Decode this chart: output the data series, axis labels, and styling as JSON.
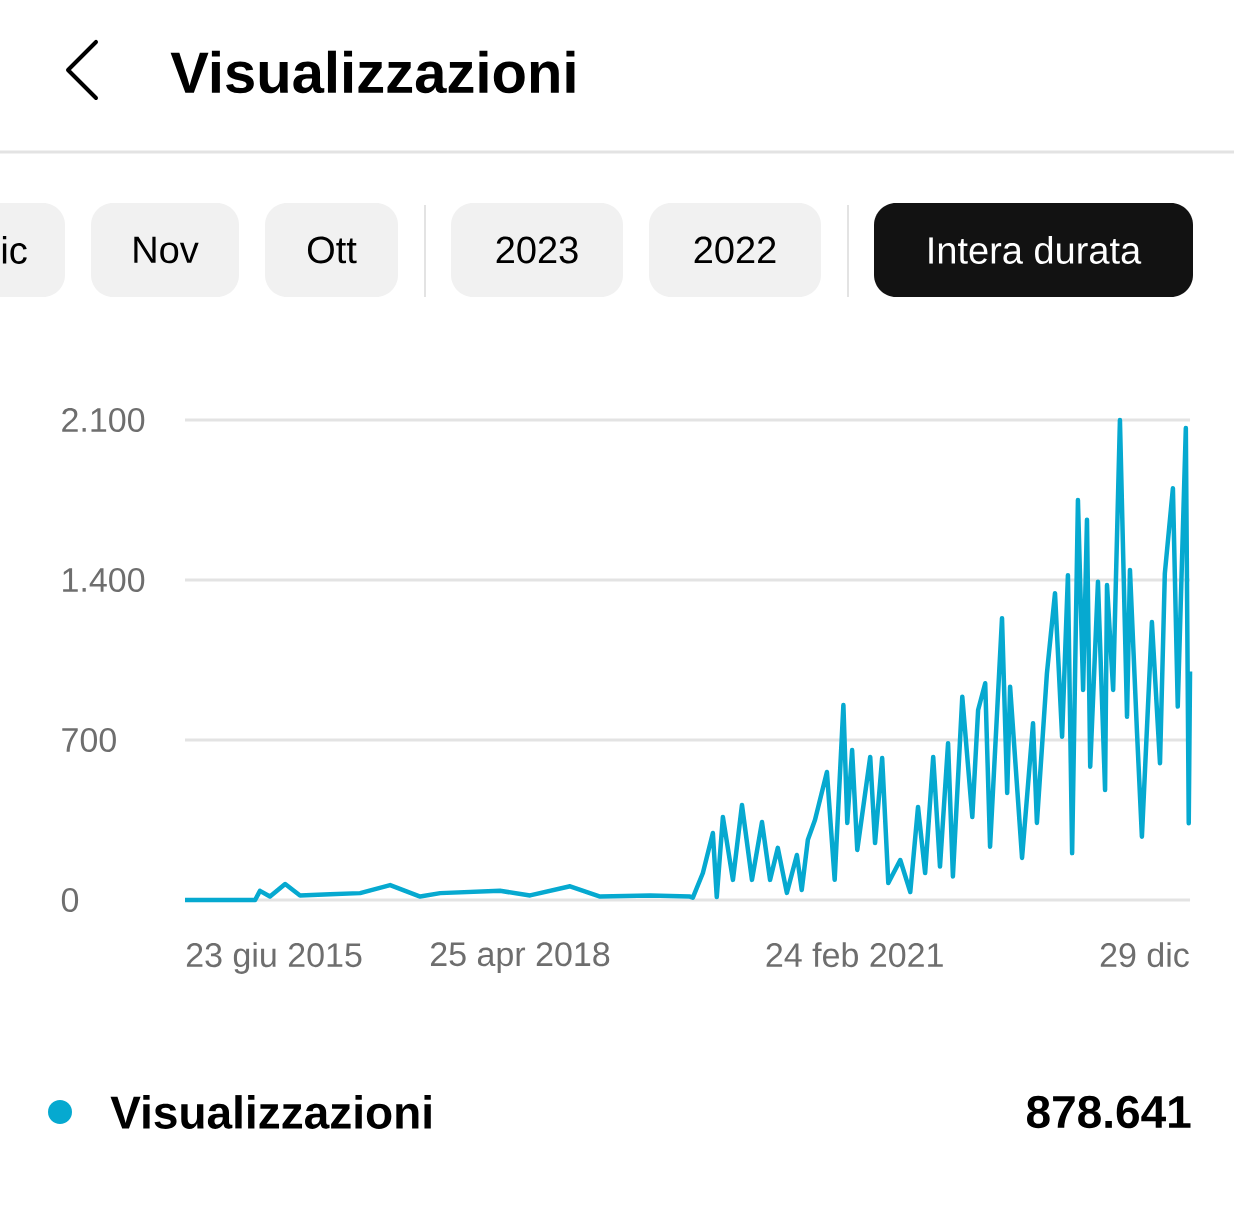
{
  "chart_data": {
    "type": "line",
    "title": "Visualizzazioni",
    "annotations": [
      "ic",
      "Nov",
      "Ott",
      "2023",
      "2022",
      "Intera durata",
      "878.641"
    ],
    "xlim": [
      "2015-06-23",
      "2023-12-29"
    ],
    "xticks": [
      {
        "value": "2015-06-23",
        "label": "23 giu 2015"
      },
      {
        "value": "2018-04-25",
        "label": "25 apr 2018"
      },
      {
        "value": "2021-02-24",
        "label": "24 feb 2021"
      },
      {
        "value": "2023-12-29",
        "label": "29 dic"
      }
    ],
    "ylim": [
      0,
      2100
    ],
    "yticks": [
      0,
      700,
      {
        "value": 1400,
        "label": "1.400"
      },
      {
        "value": 2100,
        "label": "2.100"
      }
    ],
    "grid": "y",
    "legend": "bottom",
    "series": [
      {
        "name": "Visualizzazioni",
        "color": "#06a9d0",
        "x": [
          "2015-06-23",
          "2016-01-26",
          "2016-02-10",
          "2016-03-12",
          "2016-04-28",
          "2016-06-13",
          "2016-09-14",
          "2016-12-16",
          "2017-03-19",
          "2017-06-20",
          "2017-08-21",
          "2018-02-22",
          "2018-05-26",
          "2018-09-27",
          "2018-12-29",
          "2019-06-02",
          "2019-10-03",
          "2019-10-12",
          "2019-11-12",
          "2019-12-13",
          "2019-12-25",
          "2020-01-13",
          "2020-02-13",
          "2020-03-12",
          "2020-04-12",
          "2020-05-13",
          "2020-06-07",
          "2020-07-01",
          "2020-07-29",
          "2020-08-29",
          "2020-09-13",
          "2020-10-02",
          "2020-10-24",
          "2020-11-30",
          "2020-12-24",
          "2021-01-20",
          "2021-02-01",
          "2021-02-16",
          "2021-03-04",
          "2021-04-13",
          "2021-04-28",
          "2021-05-20",
          "2021-06-08",
          "2021-07-15",
          "2021-08-15",
          "2021-09-08",
          "2021-09-30",
          "2021-10-25",
          "2021-11-15",
          "2021-12-10",
          "2021-12-25",
          "2022-01-23",
          "2022-02-23",
          "2022-03-13",
          "2022-04-04",
          "2022-04-19",
          "2022-05-26",
          "2022-06-11",
          "2022-06-20",
          "2022-07-27",
          "2022-08-30",
          "2022-09-11",
          "2022-10-12",
          "2022-11-06",
          "2022-11-28",
          "2022-12-16",
          "2022-12-29",
          "2023-01-16",
          "2023-02-01",
          "2023-02-13",
          "2023-02-23",
          "2023-03-19",
          "2023-04-10",
          "2023-04-16",
          "2023-05-05",
          "2023-05-26",
          "2023-06-17",
          "2023-06-26",
          "2023-07-18",
          "2023-08-02",
          "2023-09-02",
          "2023-09-27",
          "2023-10-12",
          "2023-11-06",
          "2023-11-21",
          "2023-12-16",
          "2023-12-25",
          "2023-12-29"
        ],
        "values": [
          0,
          0,
          40,
          15,
          70,
          20,
          25,
          30,
          65,
          15,
          30,
          40,
          20,
          60,
          15,
          20,
          15,
          10,
          118,
          293,
          13,
          363,
          88,
          416,
          88,
          341,
          88,
          228,
          31,
          197,
          44,
          263,
          350,
          560,
          88,
          853,
          337,
          656,
          219,
          626,
          249,
          621,
          74,
          175,
          35,
          407,
          118,
          626,
          146,
          686,
          103,
          889,
          363,
          831,
          948,
          233,
          1233,
          468,
          933,
          184,
          773,
          337,
          992,
          1342,
          714,
          1421,
          205,
          1750,
          919,
          1663,
          583,
          1392,
          481,
          1378,
          919,
          2100,
          802,
          1444,
          729,
          277,
          1216,
          598,
          1429,
          1801,
          846,
          2065,
          336,
          1000
        ]
      }
    ]
  }
}
